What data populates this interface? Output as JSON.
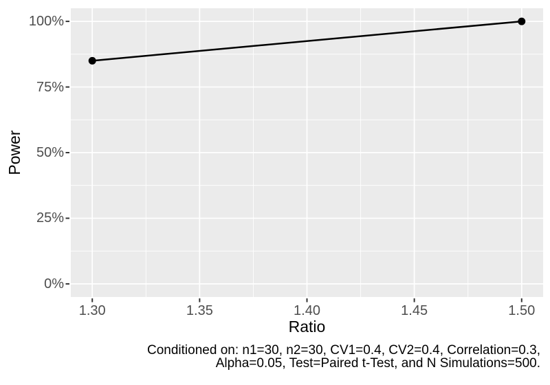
{
  "chart_data": {
    "type": "line",
    "title": "",
    "xlabel": "Ratio",
    "ylabel": "Power",
    "series": [
      {
        "name": "Power",
        "x": [
          1.3,
          1.5
        ],
        "y": [
          85,
          100
        ]
      }
    ],
    "xlim": [
      1.29,
      1.51
    ],
    "ylim": [
      -5,
      105
    ],
    "x_major_ticks": [
      1.3,
      1.35,
      1.4,
      1.45,
      1.5
    ],
    "x_tick_labels": [
      "1.30",
      "1.35",
      "1.40",
      "1.45",
      "1.50"
    ],
    "x_minor_ticks": [
      1.325,
      1.375,
      1.425,
      1.475
    ],
    "y_major_ticks": [
      0,
      25,
      50,
      75,
      100
    ],
    "y_tick_labels": [
      "0%",
      "25%",
      "50%",
      "75%",
      "100%"
    ],
    "y_minor_ticks": [
      12.5,
      37.5,
      62.5,
      87.5
    ],
    "grid": true,
    "legend_position": "none",
    "caption_lines": [
      "Conditioned on: n1=30, n2=30, CV1=0.4, CV2=0.4, Correlation=0.3,",
      "Alpha=0.05, Test=Paired t-Test, and N Simulations=500."
    ],
    "colors": {
      "page_background": "#FFFFFF",
      "panel_background": "#EBEBEB",
      "grid": "#FFFFFF",
      "line": "#000000",
      "point": "#000000",
      "tick_text": "#4D4D4D",
      "title_text": "#000000",
      "tick_mark": "#333333"
    }
  }
}
